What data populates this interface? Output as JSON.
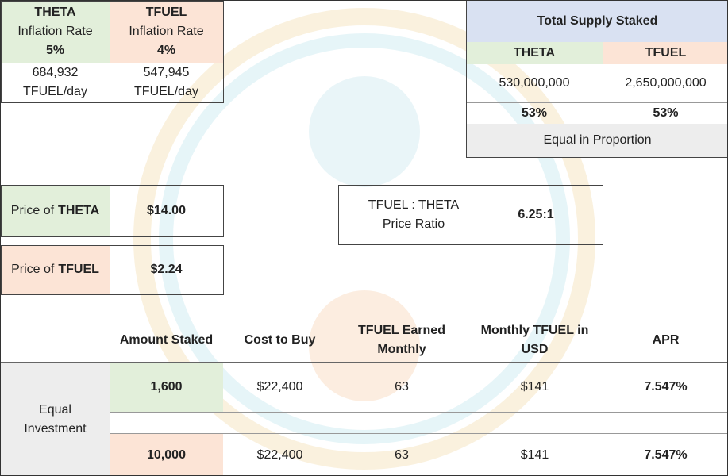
{
  "inflation": {
    "label": "Inflation Rate",
    "unit": "TFUEL/day",
    "columns": [
      {
        "token": "THETA",
        "rate": "5%",
        "amount": "684,932"
      },
      {
        "token": "TFUEL",
        "rate": "4%",
        "amount": "547,945"
      }
    ]
  },
  "supply": {
    "title": "Total Supply Staked",
    "columns": [
      {
        "token": "THETA",
        "amount": "530,000,000",
        "percent": "53%"
      },
      {
        "token": "TFUEL",
        "amount": "2,650,000,000",
        "percent": "53%"
      }
    ],
    "note": "Equal in Proportion"
  },
  "prices": {
    "label": "Price of",
    "rows": [
      {
        "token": "THETA",
        "price": "$14.00"
      },
      {
        "token": "TFUEL",
        "price": "$2.24"
      }
    ]
  },
  "ratio": {
    "label_1": "TFUEL : THETA",
    "label_2": "Price Ratio",
    "value": "6.25:1"
  },
  "table": {
    "headers": [
      "Amount Staked",
      "Cost to Buy",
      "TFUEL Earned Monthly",
      "Monthly TFUEL in USD",
      "APR"
    ],
    "group": "Equal Investment",
    "rows": [
      [
        "1,600",
        "$22,400",
        "63",
        "$141",
        "7.547%"
      ],
      [
        "10,000",
        "$22,400",
        "63",
        "$141",
        "7.547%"
      ]
    ]
  }
}
